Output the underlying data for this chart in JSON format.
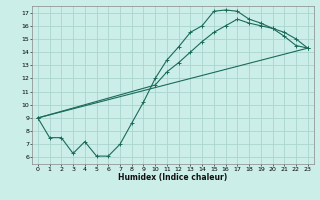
{
  "title": "",
  "xlabel": "Humidex (Indice chaleur)",
  "bg_color": "#cceee8",
  "grid_color": "#aad4ce",
  "line_color": "#1a6b5a",
  "xlim": [
    -0.5,
    23.5
  ],
  "ylim": [
    5.5,
    17.5
  ],
  "xticks": [
    0,
    1,
    2,
    3,
    4,
    5,
    6,
    7,
    8,
    9,
    10,
    11,
    12,
    13,
    14,
    15,
    16,
    17,
    18,
    19,
    20,
    21,
    22,
    23
  ],
  "yticks": [
    6,
    7,
    8,
    9,
    10,
    11,
    12,
    13,
    14,
    15,
    16,
    17
  ],
  "curve1_x": [
    0,
    1,
    2,
    3,
    4,
    5,
    6,
    7,
    8,
    9,
    10,
    11,
    12,
    13,
    14,
    15,
    16,
    17,
    18,
    19,
    20,
    21,
    22,
    23
  ],
  "curve1_y": [
    9.0,
    7.5,
    7.5,
    6.3,
    7.2,
    6.1,
    6.1,
    7.0,
    8.6,
    10.2,
    12.0,
    13.4,
    14.4,
    15.5,
    16.0,
    17.1,
    17.2,
    17.1,
    16.5,
    16.2,
    15.8,
    15.2,
    14.5,
    14.3
  ],
  "curve2_x": [
    0,
    10,
    11,
    12,
    13,
    14,
    15,
    16,
    17,
    18,
    19,
    20,
    21,
    22,
    23
  ],
  "curve2_y": [
    9.0,
    11.5,
    12.5,
    13.2,
    14.0,
    14.8,
    15.5,
    16.0,
    16.5,
    16.2,
    16.0,
    15.8,
    15.5,
    15.0,
    14.3
  ],
  "curve3_x": [
    0,
    23
  ],
  "curve3_y": [
    9.0,
    14.3
  ]
}
